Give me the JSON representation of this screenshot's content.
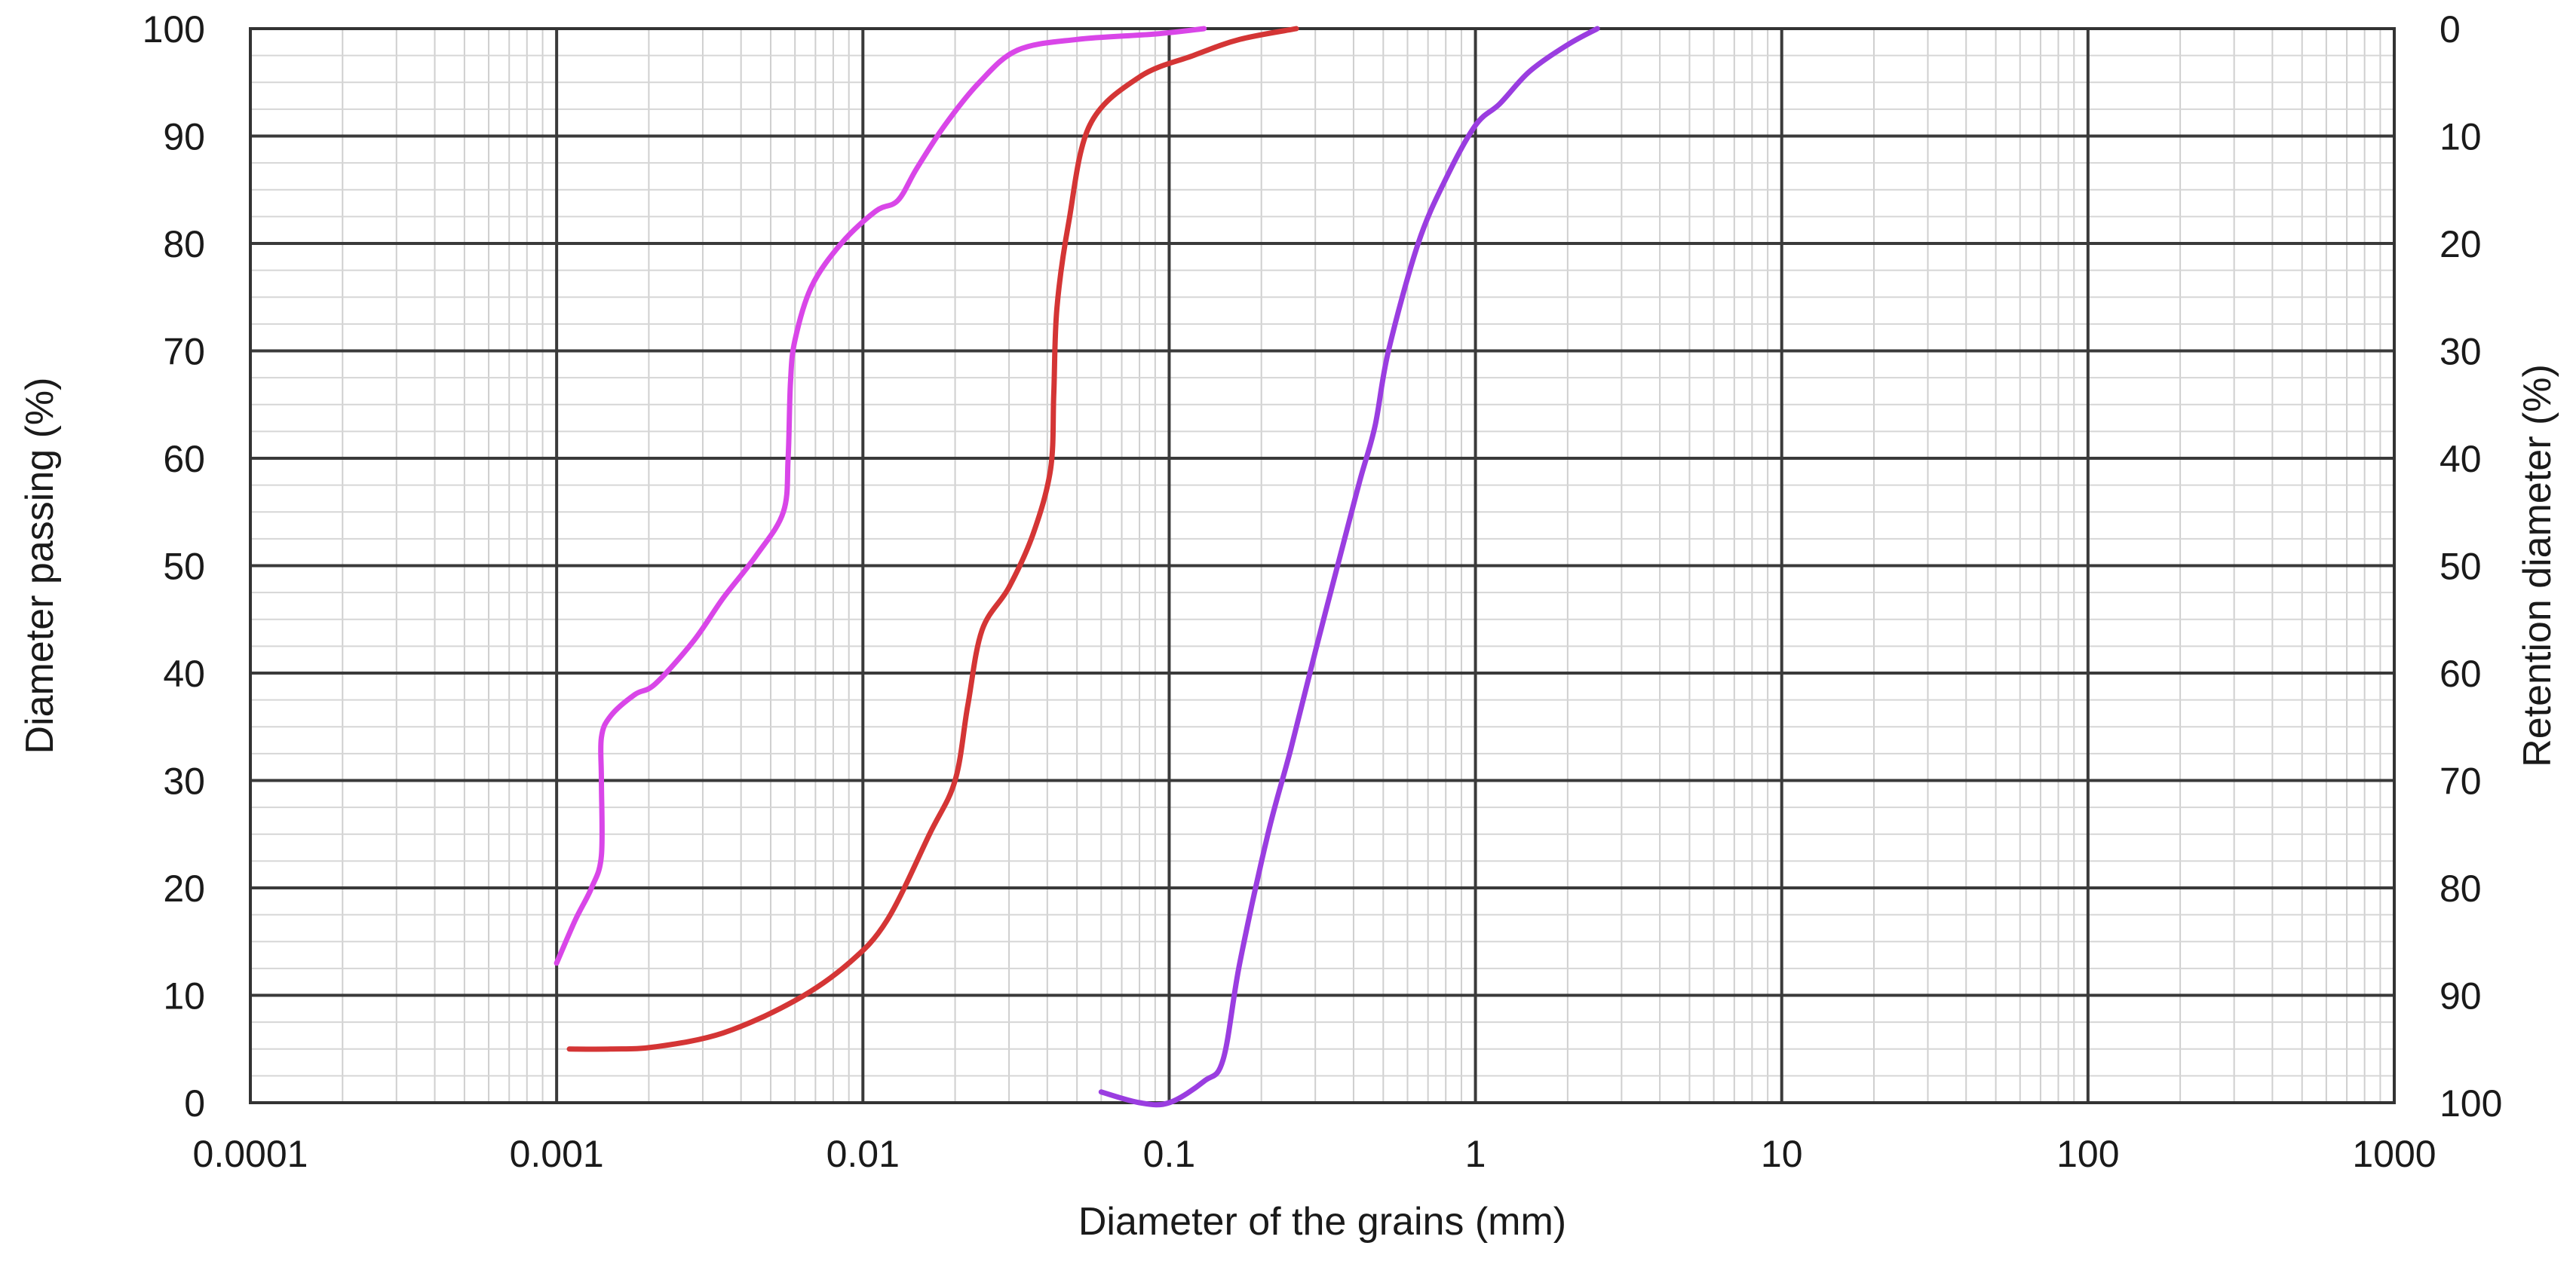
{
  "chart_data": {
    "type": "line",
    "title": "",
    "xlabel": "Diameter of the grains (mm)",
    "ylabel": "Diameter passing (%)",
    "y2label": "Retention diameter (%)",
    "xscale": "log",
    "xlim": [
      0.0001,
      1000
    ],
    "ylim": [
      0,
      100
    ],
    "y2lim": [
      100,
      0
    ],
    "grid": true,
    "legend": "none",
    "x_tick_labels": [
      "0.0001",
      "0.001",
      "0.01",
      "0.1",
      "1",
      "10",
      "100",
      "1000"
    ],
    "x_tick_values": [
      0.0001,
      0.001,
      0.01,
      0.1,
      1,
      10,
      100,
      1000
    ],
    "y_tick_labels": [
      "0",
      "10",
      "20",
      "30",
      "40",
      "50",
      "60",
      "70",
      "80",
      "90",
      "100"
    ],
    "y_tick_values": [
      0,
      10,
      20,
      30,
      40,
      50,
      60,
      70,
      80,
      90,
      100
    ],
    "y2_tick_labels": [
      "100",
      "90",
      "80",
      "70",
      "60",
      "50",
      "40",
      "30",
      "20",
      "10",
      "0"
    ],
    "series": [
      {
        "name": "Magenta curve",
        "color": "#d946e8",
        "points": [
          [
            0.001,
            13
          ],
          [
            0.00115,
            17
          ],
          [
            0.0013,
            20
          ],
          [
            0.0014,
            23
          ],
          [
            0.0014,
            30
          ],
          [
            0.0014,
            34
          ],
          [
            0.0015,
            36
          ],
          [
            0.0018,
            38
          ],
          [
            0.0021,
            39
          ],
          [
            0.0028,
            43
          ],
          [
            0.0035,
            47
          ],
          [
            0.0045,
            51
          ],
          [
            0.0055,
            55
          ],
          [
            0.0057,
            60
          ],
          [
            0.0058,
            67
          ],
          [
            0.006,
            71
          ],
          [
            0.0068,
            76
          ],
          [
            0.0085,
            80
          ],
          [
            0.011,
            83
          ],
          [
            0.013,
            84
          ],
          [
            0.015,
            87
          ],
          [
            0.0185,
            91
          ],
          [
            0.024,
            95
          ],
          [
            0.032,
            98
          ],
          [
            0.05,
            99
          ],
          [
            0.09,
            99.5
          ],
          [
            0.13,
            100
          ]
        ]
      },
      {
        "name": "Red curve",
        "color": "#d43535",
        "points": [
          [
            0.0011,
            5
          ],
          [
            0.0015,
            5
          ],
          [
            0.0021,
            5.2
          ],
          [
            0.0035,
            6.5
          ],
          [
            0.006,
            9.5
          ],
          [
            0.009,
            13
          ],
          [
            0.012,
            17
          ],
          [
            0.0165,
            25
          ],
          [
            0.02,
            30
          ],
          [
            0.022,
            37
          ],
          [
            0.0245,
            44
          ],
          [
            0.03,
            48
          ],
          [
            0.036,
            53
          ],
          [
            0.041,
            59
          ],
          [
            0.042,
            66
          ],
          [
            0.043,
            74
          ],
          [
            0.047,
            82
          ],
          [
            0.055,
            91
          ],
          [
            0.08,
            95.5
          ],
          [
            0.12,
            97.5
          ],
          [
            0.17,
            99
          ],
          [
            0.26,
            100
          ]
        ]
      },
      {
        "name": "Purple curve",
        "color": "#9a3de0",
        "points": [
          [
            0.06,
            1
          ],
          [
            0.08,
            0
          ],
          [
            0.1,
            0
          ],
          [
            0.13,
            2
          ],
          [
            0.15,
            4
          ],
          [
            0.17,
            13
          ],
          [
            0.21,
            25
          ],
          [
            0.25,
            33
          ],
          [
            0.3,
            42
          ],
          [
            0.37,
            52
          ],
          [
            0.42,
            58
          ],
          [
            0.47,
            63
          ],
          [
            0.52,
            70
          ],
          [
            0.65,
            80
          ],
          [
            0.8,
            86
          ],
          [
            1.0,
            91
          ],
          [
            1.2,
            93
          ],
          [
            1.5,
            96
          ],
          [
            2.0,
            98.5
          ],
          [
            2.5,
            100
          ]
        ]
      }
    ]
  }
}
